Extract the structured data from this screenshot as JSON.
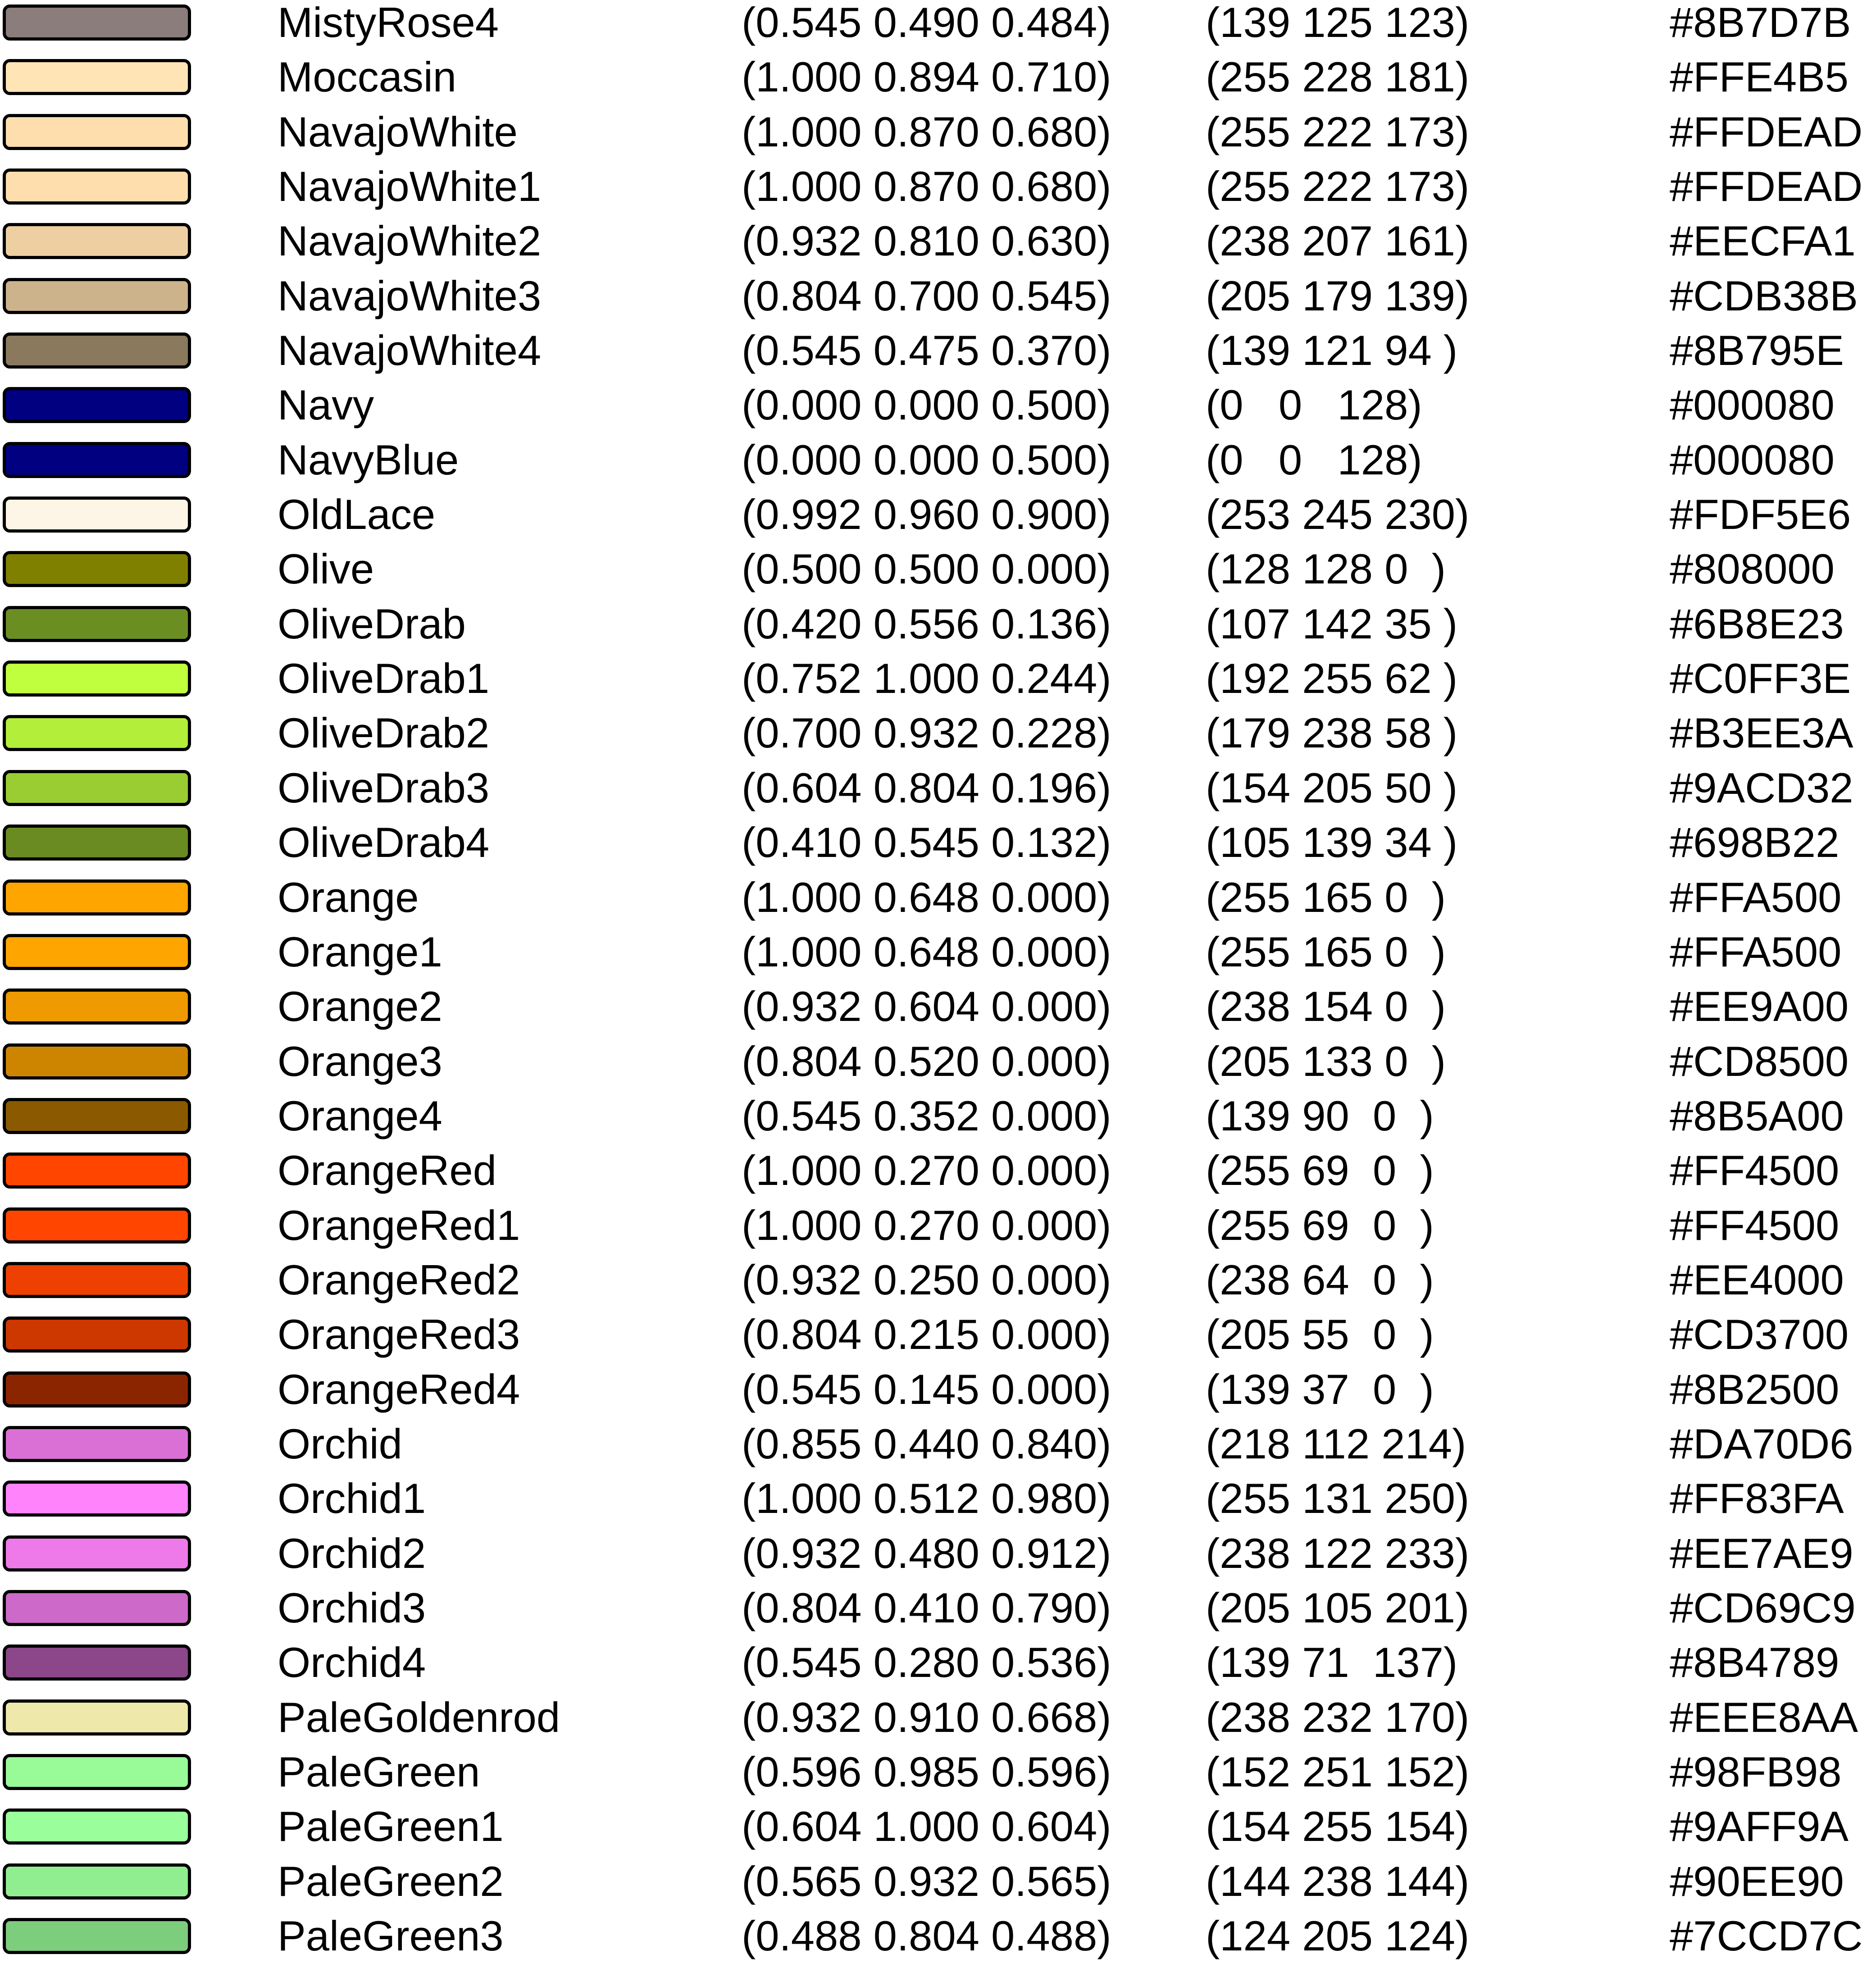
{
  "colors": [
    {
      "name": "MistyRose4",
      "decimal": "(0.545 0.490 0.484)",
      "rgb": "(139 125 123)",
      "hex": "#8B7D7B"
    },
    {
      "name": "Moccasin",
      "decimal": "(1.000 0.894 0.710)",
      "rgb": "(255 228 181)",
      "hex": "#FFE4B5"
    },
    {
      "name": "NavajoWhite",
      "decimal": "(1.000 0.870 0.680)",
      "rgb": "(255 222 173)",
      "hex": "#FFDEAD"
    },
    {
      "name": "NavajoWhite1",
      "decimal": "(1.000 0.870 0.680)",
      "rgb": "(255 222 173)",
      "hex": "#FFDEAD"
    },
    {
      "name": "NavajoWhite2",
      "decimal": "(0.932 0.810 0.630)",
      "rgb": "(238 207 161)",
      "hex": "#EECFA1"
    },
    {
      "name": "NavajoWhite3",
      "decimal": "(0.804 0.700 0.545)",
      "rgb": "(205 179 139)",
      "hex": "#CDB38B"
    },
    {
      "name": "NavajoWhite4",
      "decimal": "(0.545 0.475 0.370)",
      "rgb": "(139 121 94 )",
      "hex": "#8B795E"
    },
    {
      "name": "Navy",
      "decimal": "(0.000 0.000 0.500)",
      "rgb": "(0   0   128)",
      "hex": "#000080"
    },
    {
      "name": "NavyBlue",
      "decimal": "(0.000 0.000 0.500)",
      "rgb": "(0   0   128)",
      "hex": "#000080"
    },
    {
      "name": "OldLace",
      "decimal": "(0.992 0.960 0.900)",
      "rgb": "(253 245 230)",
      "hex": "#FDF5E6"
    },
    {
      "name": "Olive",
      "decimal": "(0.500 0.500 0.000)",
      "rgb": "(128 128 0  )",
      "hex": "#808000"
    },
    {
      "name": "OliveDrab",
      "decimal": "(0.420 0.556 0.136)",
      "rgb": "(107 142 35 )",
      "hex": "#6B8E23"
    },
    {
      "name": "OliveDrab1",
      "decimal": "(0.752 1.000 0.244)",
      "rgb": "(192 255 62 )",
      "hex": "#C0FF3E"
    },
    {
      "name": "OliveDrab2",
      "decimal": "(0.700 0.932 0.228)",
      "rgb": "(179 238 58 )",
      "hex": "#B3EE3A"
    },
    {
      "name": "OliveDrab3",
      "decimal": "(0.604 0.804 0.196)",
      "rgb": "(154 205 50 )",
      "hex": "#9ACD32"
    },
    {
      "name": "OliveDrab4",
      "decimal": "(0.410 0.545 0.132)",
      "rgb": "(105 139 34 )",
      "hex": "#698B22"
    },
    {
      "name": "Orange",
      "decimal": "(1.000 0.648 0.000)",
      "rgb": "(255 165 0  )",
      "hex": "#FFA500"
    },
    {
      "name": "Orange1",
      "decimal": "(1.000 0.648 0.000)",
      "rgb": "(255 165 0  )",
      "hex": "#FFA500"
    },
    {
      "name": "Orange2",
      "decimal": "(0.932 0.604 0.000)",
      "rgb": "(238 154 0  )",
      "hex": "#EE9A00"
    },
    {
      "name": "Orange3",
      "decimal": "(0.804 0.520 0.000)",
      "rgb": "(205 133 0  )",
      "hex": "#CD8500"
    },
    {
      "name": "Orange4",
      "decimal": "(0.545 0.352 0.000)",
      "rgb": "(139 90  0  )",
      "hex": "#8B5A00"
    },
    {
      "name": "OrangeRed",
      "decimal": "(1.000 0.270 0.000)",
      "rgb": "(255 69  0  )",
      "hex": "#FF4500"
    },
    {
      "name": "OrangeRed1",
      "decimal": "(1.000 0.270 0.000)",
      "rgb": "(255 69  0  )",
      "hex": "#FF4500"
    },
    {
      "name": "OrangeRed2",
      "decimal": "(0.932 0.250 0.000)",
      "rgb": "(238 64  0  )",
      "hex": "#EE4000"
    },
    {
      "name": "OrangeRed3",
      "decimal": "(0.804 0.215 0.000)",
      "rgb": "(205 55  0  )",
      "hex": "#CD3700"
    },
    {
      "name": "OrangeRed4",
      "decimal": "(0.545 0.145 0.000)",
      "rgb": "(139 37  0  )",
      "hex": "#8B2500"
    },
    {
      "name": "Orchid",
      "decimal": "(0.855 0.440 0.840)",
      "rgb": "(218 112 214)",
      "hex": "#DA70D6"
    },
    {
      "name": "Orchid1",
      "decimal": "(1.000 0.512 0.980)",
      "rgb": "(255 131 250)",
      "hex": "#FF83FA"
    },
    {
      "name": "Orchid2",
      "decimal": "(0.932 0.480 0.912)",
      "rgb": "(238 122 233)",
      "hex": "#EE7AE9"
    },
    {
      "name": "Orchid3",
      "decimal": "(0.804 0.410 0.790)",
      "rgb": "(205 105 201)",
      "hex": "#CD69C9"
    },
    {
      "name": "Orchid4",
      "decimal": "(0.545 0.280 0.536)",
      "rgb": "(139 71  137)",
      "hex": "#8B4789"
    },
    {
      "name": "PaleGoldenrod",
      "decimal": "(0.932 0.910 0.668)",
      "rgb": "(238 232 170)",
      "hex": "#EEE8AA"
    },
    {
      "name": "PaleGreen",
      "decimal": "(0.596 0.985 0.596)",
      "rgb": "(152 251 152)",
      "hex": "#98FB98"
    },
    {
      "name": "PaleGreen1",
      "decimal": "(0.604 1.000 0.604)",
      "rgb": "(154 255 154)",
      "hex": "#9AFF9A"
    },
    {
      "name": "PaleGreen2",
      "decimal": "(0.565 0.932 0.565)",
      "rgb": "(144 238 144)",
      "hex": "#90EE90"
    },
    {
      "name": "PaleGreen3",
      "decimal": "(0.488 0.804 0.488)",
      "rgb": "(124 205 124)",
      "hex": "#7CCD7C"
    }
  ]
}
